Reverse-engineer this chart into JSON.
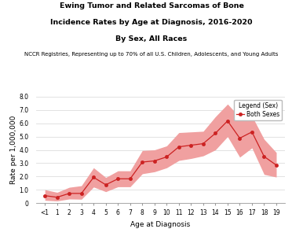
{
  "title_line1": "Ewing Tumor and Related Sarcomas of Bone",
  "title_line2": "Incidence Rates by Age at Diagnosis, 2016-2020",
  "title_line3": "By Sex, All Races",
  "subtitle": "NCCR Registries, Representing up to 70% of all U.S. Children, Adolescents, and Young Adults",
  "xlabel": "Age at Diagnosis",
  "ylabel": "Rate per 1,000,000",
  "legend_title": "Legend (Sex)",
  "legend_label": "Both Sexes",
  "x_labels": [
    "<1",
    "1",
    "2",
    "3",
    "4",
    "5",
    "6",
    "7",
    "8",
    "9",
    "10",
    "11",
    "12",
    "13",
    "14",
    "15",
    "16",
    "17",
    "18",
    "19"
  ],
  "x_values": [
    0,
    1,
    2,
    3,
    4,
    5,
    6,
    7,
    8,
    9,
    10,
    11,
    12,
    13,
    14,
    15,
    16,
    17,
    18,
    19
  ],
  "y_values": [
    0.55,
    0.43,
    0.72,
    0.72,
    1.93,
    1.37,
    1.82,
    1.82,
    3.08,
    3.17,
    3.47,
    4.23,
    4.35,
    4.47,
    5.25,
    6.18,
    4.88,
    5.35,
    3.5,
    2.85
  ],
  "y_upper": [
    1.0,
    0.8,
    1.18,
    1.3,
    2.65,
    1.92,
    2.42,
    2.42,
    3.95,
    4.0,
    4.3,
    5.3,
    5.35,
    5.4,
    6.5,
    7.45,
    6.45,
    6.55,
    4.8,
    3.8
  ],
  "y_lower": [
    0.2,
    0.15,
    0.3,
    0.28,
    1.2,
    0.85,
    1.22,
    1.22,
    2.2,
    2.35,
    2.65,
    3.2,
    3.35,
    3.55,
    4.0,
    5.0,
    3.45,
    4.15,
    2.15,
    1.95
  ],
  "ylim": [
    0,
    8.0
  ],
  "yticks": [
    0,
    1.0,
    2.0,
    3.0,
    4.0,
    5.0,
    6.0,
    7.0,
    8.0
  ],
  "line_color": "#cc2222",
  "fill_color": "#f0a0a0",
  "marker": "o",
  "marker_size": 3,
  "background_color": "#ffffff",
  "grid_color": "#dddddd",
  "title_fontsize": 6.8,
  "subtitle_fontsize": 5.0,
  "axis_label_fontsize": 6.5,
  "tick_fontsize": 5.5,
  "legend_fontsize": 5.5
}
